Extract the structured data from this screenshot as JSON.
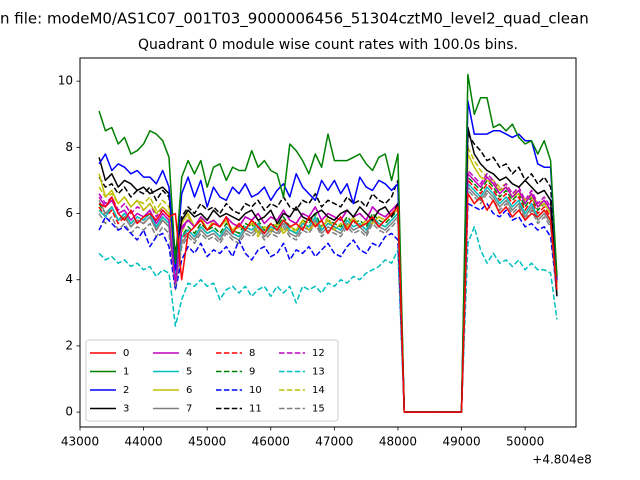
{
  "figure": {
    "suptitle": "n file: modeM0/AS1C07_001T03_9000006456_51304cztM0_level2_quad_clean"
  },
  "chart_data": {
    "type": "line",
    "title": "Quadrant 0 module wise count rates with 100.0s bins.",
    "xlabel": "",
    "ylabel": "",
    "xlim": [
      43000,
      50800
    ],
    "ylim": [
      -0.45,
      10.7
    ],
    "x_offset_label": "+4.804e8",
    "x_ticks": [
      43000,
      44000,
      45000,
      46000,
      47000,
      48000,
      49000,
      50000
    ],
    "x_tick_labels": [
      "43000",
      "44000",
      "45000",
      "46000",
      "47000",
      "48000",
      "49000",
      "50000"
    ],
    "y_ticks": [
      0,
      2,
      4,
      6,
      8,
      10
    ],
    "y_tick_labels": [
      "0",
      "2",
      "4",
      "6",
      "8",
      "10"
    ],
    "x_segments": [
      {
        "start": 43300,
        "step": 100,
        "count": 48
      },
      {
        "start": 49100,
        "step": 100,
        "count": 15
      }
    ],
    "gap": {
      "x": [
        48100,
        48300,
        48500,
        48700,
        48900,
        49000
      ],
      "value": 0
    },
    "legend_position": "lower-left",
    "series": [
      {
        "name": "0",
        "color": "#ff0000",
        "dash": "solid",
        "seg1": [
          6.3,
          6.2,
          6.5,
          6.0,
          5.8,
          6.1,
          5.7,
          5.9,
          6.0,
          5.8,
          6.1,
          5.9,
          6.0,
          4.0,
          5.4,
          5.6,
          5.8,
          5.5,
          5.7,
          5.6,
          5.9,
          5.4,
          5.7,
          5.5,
          5.8,
          5.6,
          5.4,
          5.7,
          5.5,
          5.8,
          5.6,
          5.7,
          5.5,
          5.9,
          5.6,
          5.8,
          5.4,
          5.7,
          5.9,
          5.5,
          5.8,
          5.6,
          5.7,
          5.9,
          5.6,
          5.8,
          6.0,
          6.2
        ],
        "seg2": [
          6.6,
          6.3,
          6.5,
          6.1,
          6.4,
          6.0,
          6.2,
          5.9,
          6.1,
          5.8,
          6.0,
          5.9,
          6.1,
          5.8,
          3.7
        ]
      },
      {
        "name": "1",
        "color": "#008000",
        "dash": "solid",
        "seg1": [
          9.1,
          8.5,
          8.6,
          8.1,
          8.3,
          7.8,
          7.9,
          8.1,
          8.5,
          8.4,
          8.2,
          7.7,
          4.5,
          7.1,
          7.6,
          7.2,
          7.6,
          6.8,
          7.4,
          7.5,
          7.0,
          7.4,
          7.3,
          7.3,
          7.9,
          7.4,
          7.6,
          7.3,
          7.2,
          6.5,
          8.1,
          7.9,
          7.6,
          7.2,
          7.8,
          7.4,
          8.4,
          7.6,
          7.6,
          7.6,
          7.7,
          7.8,
          7.5,
          7.3,
          7.7,
          7.8,
          7.0,
          7.8
        ],
        "seg2": [
          10.2,
          9.0,
          9.5,
          9.5,
          8.6,
          8.7,
          8.5,
          8.7,
          8.3,
          8.1,
          8.2,
          7.8,
          8.2,
          7.6,
          4.1
        ]
      },
      {
        "name": "2",
        "color": "#0000ff",
        "dash": "solid",
        "seg1": [
          7.5,
          7.8,
          7.3,
          7.5,
          7.4,
          7.2,
          7.3,
          7.1,
          7.1,
          6.9,
          7.3,
          6.8,
          4.3,
          6.6,
          7.1,
          6.5,
          7.0,
          6.2,
          6.8,
          6.5,
          6.4,
          6.8,
          6.6,
          6.9,
          6.5,
          6.6,
          6.8,
          6.4,
          6.7,
          6.9,
          6.5,
          7.2,
          6.8,
          6.6,
          6.4,
          7.0,
          6.7,
          7.0,
          6.6,
          6.9,
          6.3,
          7.1,
          6.8,
          6.7,
          7.0,
          6.9,
          6.7,
          6.9
        ],
        "seg2": [
          9.4,
          8.4,
          8.4,
          8.4,
          8.5,
          8.5,
          8.4,
          8.3,
          8.4,
          8.2,
          8.2,
          7.5,
          7.4,
          7.4,
          4.0
        ]
      },
      {
        "name": "3",
        "color": "#000000",
        "dash": "solid",
        "seg1": [
          7.7,
          7.0,
          7.2,
          6.8,
          7.0,
          6.9,
          6.7,
          6.8,
          6.6,
          6.7,
          6.8,
          6.6,
          4.8,
          5.8,
          6.1,
          5.9,
          6.0,
          5.8,
          6.1,
          5.9,
          6.0,
          5.9,
          5.8,
          6.0,
          6.1,
          5.8,
          5.9,
          6.1,
          5.7,
          6.0,
          5.9,
          6.2,
          5.9,
          5.8,
          6.0,
          6.1,
          5.9,
          5.8,
          6.0,
          6.1,
          5.9,
          6.2,
          6.0,
          5.8,
          6.1,
          6.2,
          5.9,
          6.3
        ],
        "seg2": [
          8.6,
          7.8,
          7.5,
          7.3,
          7.2,
          7.0,
          7.1,
          6.9,
          6.8,
          7.0,
          6.8,
          6.6,
          6.7,
          6.4,
          3.5
        ]
      },
      {
        "name": "4",
        "color": "#bf00bf",
        "dash": "solid",
        "seg1": [
          6.5,
          6.2,
          6.4,
          6.0,
          6.1,
          5.8,
          6.0,
          5.9,
          6.1,
          5.7,
          6.0,
          5.8,
          3.9,
          5.6,
          5.8,
          5.6,
          5.9,
          5.7,
          5.8,
          5.6,
          5.9,
          5.7,
          5.6,
          5.9,
          5.8,
          6.0,
          5.7,
          5.9,
          5.8,
          6.1,
          5.8,
          5.7,
          6.0,
          5.9,
          6.2,
          5.8,
          6.0,
          5.9,
          5.8,
          6.1,
          5.9,
          6.0,
          5.8,
          6.2,
          6.0,
          5.9,
          6.1,
          6.3
        ],
        "seg2": [
          7.2,
          7.0,
          6.8,
          7.1,
          6.9,
          6.6,
          6.8,
          6.5,
          6.7,
          6.3,
          6.6,
          6.2,
          6.4,
          6.1,
          4.1
        ]
      },
      {
        "name": "5",
        "color": "#00bfbf",
        "dash": "solid",
        "seg1": [
          6.1,
          5.9,
          6.2,
          5.8,
          6.0,
          5.7,
          5.9,
          5.8,
          6.0,
          5.6,
          5.9,
          5.7,
          4.1,
          5.3,
          5.5,
          5.3,
          5.6,
          5.4,
          5.5,
          5.3,
          5.6,
          5.4,
          5.3,
          5.6,
          5.5,
          5.7,
          5.4,
          5.6,
          5.5,
          5.8,
          5.5,
          5.4,
          5.7,
          5.6,
          5.9,
          5.5,
          5.7,
          5.6,
          5.5,
          5.8,
          5.6,
          5.7,
          5.5,
          5.9,
          5.7,
          5.6,
          5.8,
          6.0
        ],
        "seg2": [
          6.9,
          6.7,
          6.5,
          6.8,
          6.6,
          6.3,
          6.5,
          6.2,
          6.4,
          6.0,
          6.3,
          5.9,
          6.1,
          5.8,
          3.8
        ]
      },
      {
        "name": "6",
        "color": "#bfbf00",
        "dash": "solid",
        "seg1": [
          7.2,
          6.5,
          6.7,
          6.3,
          6.5,
          6.2,
          6.4,
          6.1,
          6.3,
          6.0,
          6.2,
          6.0,
          4.4,
          5.7,
          6.0,
          5.6,
          5.9,
          5.5,
          5.8,
          5.6,
          5.8,
          5.5,
          5.7,
          5.5,
          5.8,
          5.4,
          5.6,
          5.5,
          5.7,
          5.4,
          5.6,
          5.5,
          5.8,
          5.5,
          5.7,
          5.6,
          5.8,
          5.5,
          5.7,
          5.6,
          5.9,
          5.6,
          5.8,
          5.7,
          5.9,
          5.8,
          6.0,
          6.1
        ],
        "seg2": [
          7.8,
          7.4,
          7.1,
          7.0,
          6.9,
          6.7,
          6.8,
          6.5,
          6.6,
          6.4,
          6.5,
          6.2,
          6.3,
          6.0,
          4.0
        ]
      },
      {
        "name": "7",
        "color": "#808080",
        "dash": "solid",
        "seg1": [
          6.4,
          6.0,
          6.2,
          5.8,
          5.9,
          5.6,
          5.8,
          5.7,
          5.9,
          5.5,
          5.8,
          5.6,
          3.8,
          5.1,
          5.4,
          5.2,
          5.5,
          5.3,
          5.4,
          5.2,
          5.5,
          5.3,
          5.2,
          5.5,
          5.4,
          5.6,
          5.3,
          5.5,
          5.4,
          5.7,
          5.4,
          5.3,
          5.6,
          5.5,
          5.8,
          5.4,
          5.6,
          5.5,
          5.4,
          5.7,
          5.5,
          5.6,
          5.4,
          5.8,
          5.6,
          5.5,
          5.7,
          5.9
        ],
        "seg2": [
          6.8,
          6.6,
          6.4,
          6.7,
          6.5,
          6.2,
          6.4,
          6.1,
          6.3,
          5.9,
          6.2,
          5.8,
          6.0,
          5.7,
          3.6
        ]
      },
      {
        "name": "8",
        "color": "#ff0000",
        "dash": "dashed",
        "seg1": [
          6.2,
          5.9,
          6.1,
          5.7,
          5.9,
          5.6,
          5.8,
          5.7,
          5.9,
          5.5,
          5.8,
          5.6,
          3.9,
          5.2,
          5.5,
          5.3,
          5.6,
          5.4,
          5.5,
          5.3,
          5.6,
          5.4,
          5.3,
          5.6,
          5.5,
          5.7,
          5.4,
          5.6,
          5.5,
          5.8,
          5.5,
          5.4,
          5.7,
          5.6,
          5.9,
          5.5,
          5.7,
          5.6,
          5.5,
          5.8,
          5.6,
          5.7,
          5.5,
          5.9,
          5.7,
          5.6,
          5.8,
          6.0
        ],
        "seg2": [
          7.0,
          6.8,
          6.6,
          6.9,
          6.7,
          6.4,
          6.6,
          6.3,
          6.5,
          6.1,
          6.4,
          6.0,
          6.2,
          5.9,
          3.9
        ]
      },
      {
        "name": "9",
        "color": "#008000",
        "dash": "dashed",
        "seg1": [
          6.3,
          6.0,
          6.2,
          5.8,
          6.0,
          5.7,
          5.9,
          5.8,
          6.0,
          5.6,
          5.9,
          5.7,
          4.0,
          5.3,
          5.6,
          5.4,
          5.7,
          5.5,
          5.6,
          5.4,
          5.7,
          5.5,
          5.4,
          5.7,
          5.6,
          5.8,
          5.5,
          5.7,
          5.6,
          5.9,
          5.6,
          5.5,
          5.8,
          5.7,
          6.0,
          5.6,
          5.8,
          5.7,
          5.6,
          5.9,
          5.7,
          5.8,
          5.6,
          6.0,
          5.8,
          5.7,
          5.9,
          6.1
        ],
        "seg2": [
          7.1,
          6.9,
          6.7,
          7.0,
          6.8,
          6.5,
          6.7,
          6.4,
          6.6,
          6.2,
          6.5,
          6.1,
          6.3,
          6.0,
          3.9
        ]
      },
      {
        "name": "10",
        "color": "#0000ff",
        "dash": "dashed",
        "seg1": [
          5.5,
          5.9,
          5.7,
          5.5,
          5.6,
          5.4,
          5.2,
          5.5,
          5.0,
          5.3,
          5.4,
          5.0,
          3.7,
          4.6,
          5.0,
          4.8,
          5.1,
          4.7,
          4.9,
          4.8,
          5.0,
          4.7,
          5.2,
          4.8,
          4.6,
          4.9,
          5.0,
          4.7,
          4.8,
          5.1,
          4.6,
          4.9,
          4.8,
          5.0,
          4.7,
          4.9,
          5.1,
          4.8,
          4.7,
          5.0,
          5.2,
          4.9,
          4.8,
          5.1,
          5.0,
          5.3,
          5.4,
          5.2
        ],
        "seg2": [
          6.3,
          6.2,
          6.1,
          6.3,
          6.0,
          5.9,
          6.1,
          5.8,
          5.9,
          5.6,
          5.7,
          5.5,
          5.6,
          5.3,
          3.6
        ]
      },
      {
        "name": "11",
        "color": "#000000",
        "dash": "dashed",
        "seg1": [
          7.1,
          6.8,
          6.9,
          6.6,
          6.8,
          6.5,
          6.7,
          6.6,
          6.8,
          6.4,
          6.7,
          6.5,
          4.5,
          5.9,
          6.2,
          6.0,
          6.3,
          6.1,
          6.2,
          6.0,
          6.3,
          6.1,
          6.0,
          6.3,
          6.2,
          6.4,
          6.1,
          6.3,
          6.2,
          6.5,
          6.2,
          6.1,
          6.4,
          6.3,
          6.6,
          6.2,
          6.4,
          6.3,
          6.2,
          6.5,
          6.3,
          6.4,
          6.2,
          6.6,
          6.4,
          6.3,
          6.5,
          7.0
        ],
        "seg2": [
          8.4,
          8.1,
          7.9,
          7.6,
          7.7,
          7.4,
          7.5,
          7.2,
          7.4,
          7.0,
          7.2,
          6.9,
          7.1,
          6.8,
          4.1
        ]
      },
      {
        "name": "12",
        "color": "#bf00bf",
        "dash": "dashed",
        "seg1": [
          6.6,
          6.3,
          6.5,
          6.1,
          6.3,
          6.0,
          6.2,
          6.1,
          6.3,
          5.9,
          6.2,
          6.0,
          4.1,
          5.5,
          5.8,
          5.6,
          5.9,
          5.7,
          5.8,
          5.6,
          5.9,
          5.7,
          5.6,
          5.9,
          5.8,
          6.0,
          5.7,
          5.9,
          5.8,
          6.1,
          5.8,
          5.7,
          6.0,
          5.9,
          6.2,
          5.8,
          6.0,
          5.9,
          5.8,
          6.1,
          5.9,
          6.0,
          5.8,
          6.2,
          6.0,
          5.9,
          6.1,
          6.3
        ],
        "seg2": [
          7.3,
          7.1,
          6.9,
          7.2,
          7.0,
          6.7,
          6.9,
          6.6,
          6.8,
          6.4,
          6.7,
          6.3,
          6.5,
          6.2,
          4.0
        ]
      },
      {
        "name": "13",
        "color": "#00bfbf",
        "dash": "dashed",
        "seg1": [
          4.8,
          4.6,
          4.7,
          4.5,
          4.6,
          4.4,
          4.5,
          4.3,
          4.4,
          4.1,
          4.3,
          4.2,
          2.6,
          3.4,
          3.9,
          3.8,
          4.0,
          3.8,
          3.9,
          3.4,
          3.7,
          3.8,
          3.6,
          3.8,
          3.5,
          3.7,
          3.8,
          3.5,
          3.8,
          3.6,
          3.8,
          3.3,
          3.8,
          3.7,
          3.8,
          3.6,
          3.9,
          3.8,
          4.0,
          3.9,
          4.1,
          4.0,
          4.2,
          4.3,
          4.4,
          4.6,
          4.5,
          4.9
        ],
        "seg2": [
          5.1,
          5.6,
          4.9,
          4.5,
          4.8,
          4.5,
          4.6,
          4.4,
          4.6,
          4.3,
          4.5,
          4.3,
          4.3,
          4.2,
          2.8
        ]
      },
      {
        "name": "14",
        "color": "#bfbf00",
        "dash": "dashed",
        "seg1": [
          6.8,
          6.5,
          6.6,
          6.3,
          6.5,
          6.2,
          6.4,
          6.3,
          6.5,
          6.1,
          6.4,
          6.2,
          4.2,
          5.4,
          5.9,
          5.6,
          5.8,
          5.5,
          5.7,
          5.6,
          5.8,
          5.4,
          5.6,
          5.5,
          5.7,
          5.3,
          5.6,
          5.4,
          5.7,
          5.5,
          5.6,
          5.4,
          5.8,
          5.5,
          5.7,
          5.6,
          5.9,
          5.5,
          5.7,
          5.6,
          5.8,
          5.6,
          5.8,
          5.7,
          5.9,
          5.8,
          6.0,
          6.2
        ],
        "seg2": [
          8.0,
          7.6,
          7.3,
          7.1,
          7.0,
          6.8,
          6.9,
          6.6,
          6.7,
          6.4,
          6.6,
          6.3,
          6.4,
          6.1,
          4.0
        ]
      },
      {
        "name": "15",
        "color": "#808080",
        "dash": "dashed",
        "seg1": [
          6.0,
          5.7,
          5.9,
          5.5,
          5.7,
          5.4,
          5.6,
          5.5,
          5.7,
          5.3,
          5.6,
          5.4,
          3.7,
          5.0,
          5.3,
          5.1,
          5.4,
          5.2,
          5.3,
          5.1,
          5.4,
          5.2,
          5.1,
          5.4,
          5.3,
          5.5,
          5.2,
          5.4,
          5.3,
          5.6,
          5.3,
          5.2,
          5.5,
          5.4,
          5.7,
          5.3,
          5.5,
          5.4,
          5.3,
          5.6,
          5.4,
          5.5,
          5.3,
          5.7,
          5.5,
          5.4,
          5.6,
          5.8
        ],
        "seg2": [
          6.7,
          6.5,
          6.3,
          6.6,
          6.4,
          6.1,
          6.3,
          6.0,
          6.2,
          5.8,
          6.1,
          5.7,
          5.9,
          5.6,
          3.5
        ]
      }
    ]
  }
}
